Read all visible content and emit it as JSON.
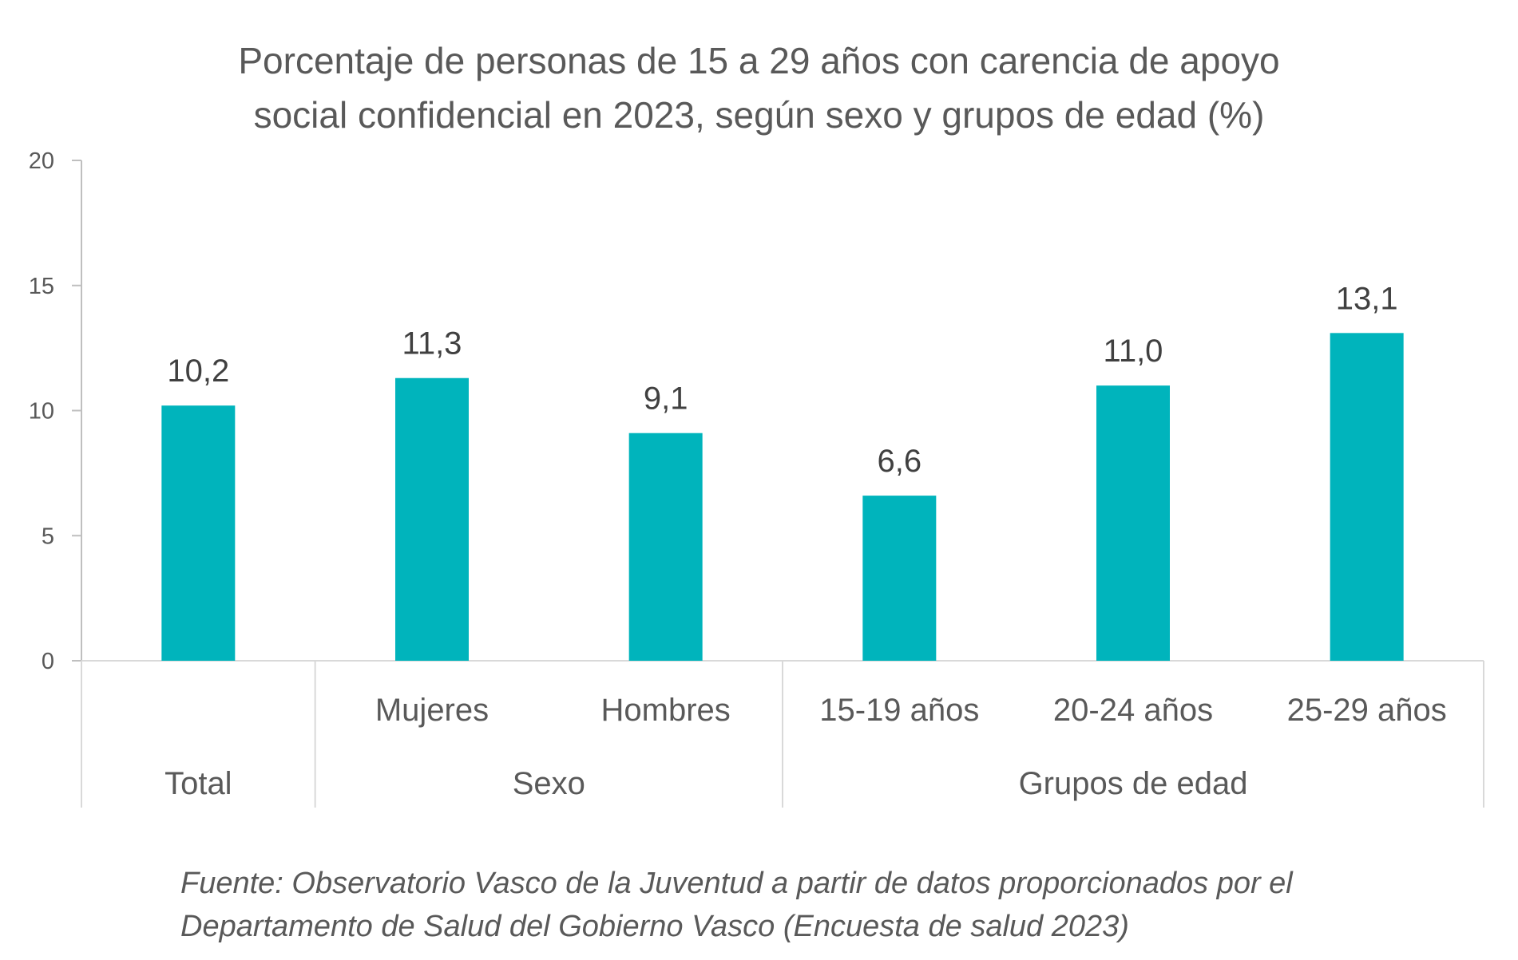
{
  "chart_data": {
    "type": "bar",
    "title_lines": [
      "Porcentaje de personas de 15 a 29 años con carencia de apoyo",
      "social confidencial en 2023, según sexo y grupos de edad (%)"
    ],
    "categories": [
      "",
      "Mujeres",
      "Hombres",
      "15-19 años",
      "20-24 años",
      "25-29 años"
    ],
    "groups": [
      {
        "label": "Total",
        "span": 1
      },
      {
        "label": "Sexo",
        "span": 2
      },
      {
        "label": "Grupos de edad",
        "span": 3
      }
    ],
    "values": [
      10.2,
      11.3,
      9.1,
      6.6,
      11.0,
      13.1
    ],
    "data_labels": [
      "10,2",
      "11,3",
      "9,1",
      "6,6",
      "11,0",
      "13,1"
    ],
    "ylim": [
      0,
      20
    ],
    "yticks": [
      0,
      5,
      10,
      15,
      20
    ],
    "grid": false,
    "bar_color": "#00B4BC",
    "source_lines": [
      "Fuente: Observatorio Vasco de la Juventud a partir de datos proporcionados por el",
      "Departamento de Salud del Gobierno Vasco (Encuesta de salud 2023)"
    ]
  }
}
